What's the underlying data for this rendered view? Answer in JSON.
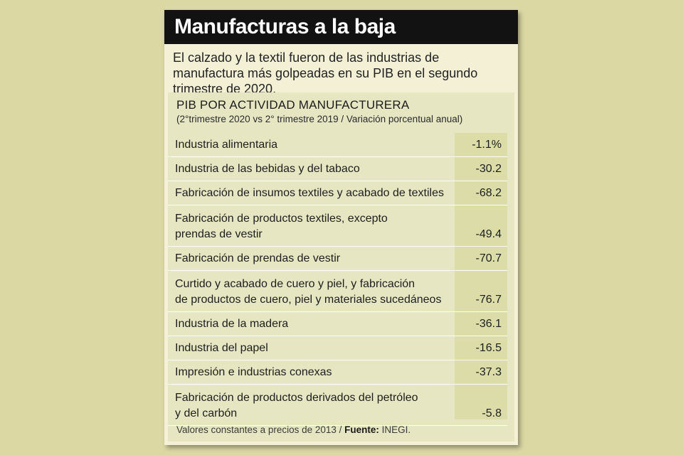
{
  "header": {
    "title": "Manufacturas a la baja",
    "subtitle": "El calzado y la textil fueron de las industrias de manufactura más golpeadas en su PIB en el segundo trimestre de 2020."
  },
  "chart_data": {
    "type": "table",
    "title": "PIB POR ACTIVIDAD MANUFACTURERA",
    "note": "(2°trimestre 2020 vs 2° trimestre 2019 / Variación porcentual anual)",
    "rows": [
      {
        "label": "Industria alimentaria",
        "value": -1.1,
        "display": "-1.1%"
      },
      {
        "label": "Industria de las bebidas y del tabaco",
        "value": -30.2,
        "display": "-30.2"
      },
      {
        "label": "Fabricación de insumos textiles y acabado de textiles",
        "value": -68.2,
        "display": "-68.2"
      },
      {
        "label": "Fabricación de productos textiles, excepto\nprendas de vestir",
        "value": -49.4,
        "display": "-49.4"
      },
      {
        "label": "Fabricación de prendas de vestir",
        "value": -70.7,
        "display": "-70.7"
      },
      {
        "label": "Curtido y acabado de cuero y piel, y fabricación\nde productos de cuero, piel y materiales sucedáneos",
        "value": -76.7,
        "display": "-76.7"
      },
      {
        "label": "Industria de la madera",
        "value": -36.1,
        "display": "-36.1"
      },
      {
        "label": "Industria del papel",
        "value": -16.5,
        "display": "-16.5"
      },
      {
        "label": "Impresión e industrias conexas",
        "value": -37.3,
        "display": "-37.3"
      },
      {
        "label": "Fabricación de productos derivados del petróleo\ny del carbón",
        "value": -5.8,
        "display": "-5.8"
      }
    ]
  },
  "footer": {
    "text": "Valores constantes a precios de 2013 / ",
    "source_label": "Fuente:",
    "source": " INEGI."
  }
}
